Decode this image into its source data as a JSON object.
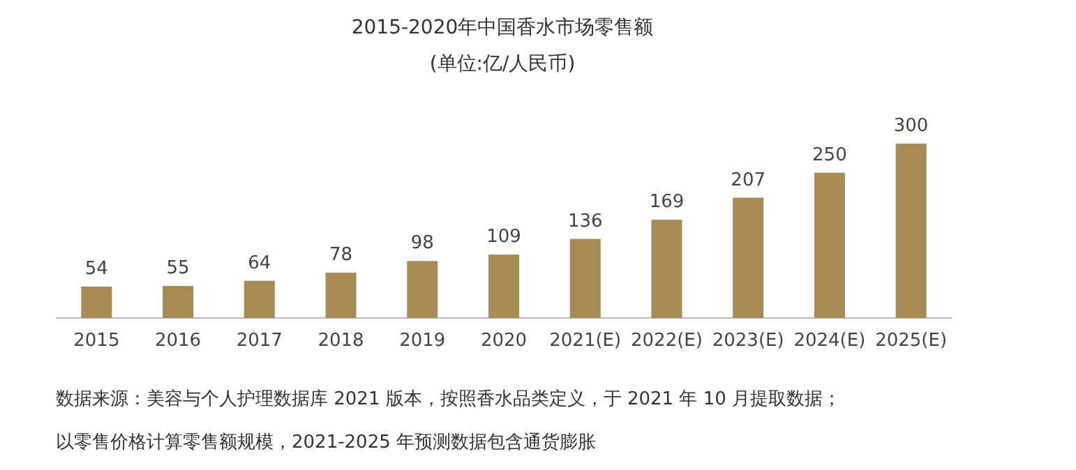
{
  "chart_data": {
    "type": "bar",
    "title": "2015-2020年中国香水市场零售额",
    "subtitle": "(单位:亿/人民币)",
    "categories": [
      "2015",
      "2016",
      "2017",
      "2018",
      "2019",
      "2020",
      "2021(E)",
      "2022(E)",
      "2023(E)",
      "2024(E)",
      "2025(E)"
    ],
    "values": [
      54,
      55,
      64,
      78,
      98,
      109,
      136,
      169,
      207,
      250,
      300
    ],
    "color": "#a88a55",
    "data_labels": true,
    "annotations": [
      "数据来源：美容与个人护理数据库 2021 版本，按照香水品类定义，于 2021 年 10 月提取数据；",
      "以零售价格计算零售额规模，2021-2025 年预测数据包含通货膨胀"
    ]
  }
}
